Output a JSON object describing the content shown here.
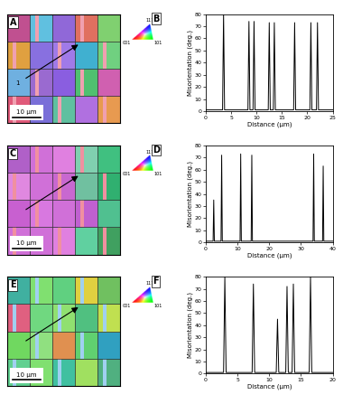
{
  "maps": [
    {
      "panel": "A",
      "scale_bar": {
        "length": 10,
        "label": "10 µm"
      },
      "arrow_label": "1"
    },
    {
      "panel": "C",
      "scale_bar": {
        "length": 10,
        "label": "10 µm"
      }
    },
    {
      "panel": "E",
      "scale_bar": {
        "length": 10,
        "label": "10 µm"
      }
    }
  ],
  "ipf_key_labels": [
    "001",
    "101",
    "111"
  ],
  "chart_data": [
    {
      "panel": "B",
      "type": "line",
      "color": "#000000",
      "x_label": "Distance (µm)",
      "y_label": "Misorientation (deg.)",
      "x": [
        0,
        3.3,
        3.5,
        3.7,
        8.3,
        8.5,
        8.7,
        9.3,
        9.5,
        9.7,
        12.3,
        12.5,
        12.7,
        13.3,
        13.5,
        13.7,
        17.3,
        17.5,
        17.7,
        20.5,
        20.7,
        20.9,
        21.8,
        22.0,
        22.2,
        25
      ],
      "values": [
        1,
        1,
        80,
        1,
        1,
        74,
        1,
        1,
        74,
        1,
        1,
        73,
        1,
        1,
        73,
        1,
        1,
        73,
        1,
        1,
        73,
        1,
        1,
        73,
        1,
        1
      ],
      "xlim": [
        0,
        25
      ],
      "xticks": [
        0,
        5,
        10,
        15,
        20,
        25
      ],
      "ylim": [
        0,
        80
      ],
      "yticks": [
        0,
        10,
        20,
        30,
        40,
        50,
        60,
        70,
        80
      ]
    },
    {
      "panel": "D",
      "type": "line",
      "color": "#000000",
      "x_label": "Distance (µm)",
      "y_label": "Misorientation (deg.)",
      "x": [
        0,
        2.3,
        2.5,
        2.7,
        4.8,
        5.0,
        5.2,
        10.8,
        11.0,
        11.2,
        14.3,
        14.5,
        14.7,
        33.8,
        34.0,
        34.2,
        36.8,
        37.0,
        37.2,
        40
      ],
      "values": [
        1,
        1,
        35,
        1,
        1,
        72,
        1,
        1,
        73,
        1,
        1,
        72,
        1,
        1,
        73,
        1,
        1,
        63,
        1,
        1
      ],
      "xlim": [
        0,
        40
      ],
      "xticks": [
        0,
        10,
        20,
        30,
        40
      ],
      "ylim": [
        0,
        80
      ],
      "yticks": [
        0,
        10,
        20,
        30,
        40,
        50,
        60,
        70,
        80
      ]
    },
    {
      "panel": "F",
      "type": "line",
      "color": "#000000",
      "x_label": "Distance (µm)",
      "y_label": "Misorientation (deg.)",
      "x": [
        0,
        2.8,
        3.0,
        3.2,
        7.3,
        7.5,
        7.7,
        11.1,
        11.3,
        11.5,
        12.6,
        12.8,
        13.0,
        13.6,
        13.8,
        14.0,
        16.3,
        16.5,
        16.7,
        20
      ],
      "values": [
        1,
        1,
        80,
        1,
        1,
        74,
        1,
        1,
        45,
        1,
        1,
        72,
        1,
        1,
        74,
        1,
        1,
        80,
        1,
        1
      ],
      "xlim": [
        0,
        20
      ],
      "xticks": [
        0,
        5,
        10,
        15,
        20
      ],
      "ylim": [
        0,
        80
      ],
      "yticks": [
        0,
        10,
        20,
        30,
        40,
        50,
        60,
        70,
        80
      ]
    }
  ]
}
